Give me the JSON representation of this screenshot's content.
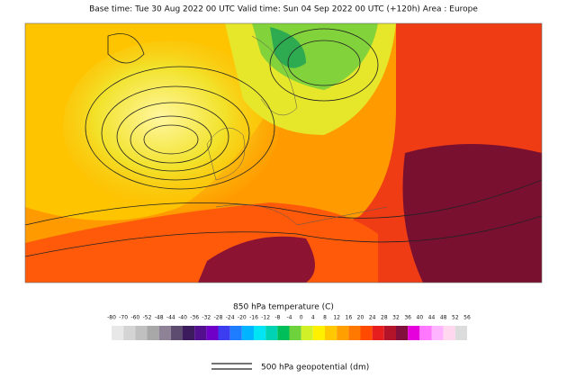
{
  "title": "Base time: Tue 30 Aug 2022 00 UTC Valid time: Sun 04 Sep 2022 00 UTC (+120h) Area : Europe",
  "legend": {
    "title": "850 hPa temperature (C)",
    "ticks": [
      -80,
      -70,
      -60,
      -52,
      -48,
      -44,
      -40,
      -36,
      -32,
      -28,
      -24,
      -20,
      -16,
      -12,
      -8,
      -4,
      0,
      4,
      8,
      12,
      16,
      20,
      24,
      28,
      32,
      36,
      40,
      44,
      48,
      52,
      56
    ],
    "colors": [
      "#e8e8e8",
      "#d4d4d4",
      "#c0c0c0",
      "#a8a8a8",
      "#8e8296",
      "#5e4c70",
      "#3c1c5c",
      "#52108e",
      "#7000c8",
      "#3c3cf0",
      "#1e7cff",
      "#00b4ff",
      "#00e4f4",
      "#00d2b4",
      "#00be5a",
      "#6ed23c",
      "#d2f028",
      "#fff000",
      "#ffc800",
      "#ffa000",
      "#ff7800",
      "#ff4a00",
      "#e61e1e",
      "#b4142a",
      "#82103c",
      "#e600dc",
      "#ff78ff",
      "#ffb4ff",
      "#ffd8f0",
      "#dcdcdc"
    ]
  },
  "contour_legend": "500 hPa geopotential (dm)"
}
